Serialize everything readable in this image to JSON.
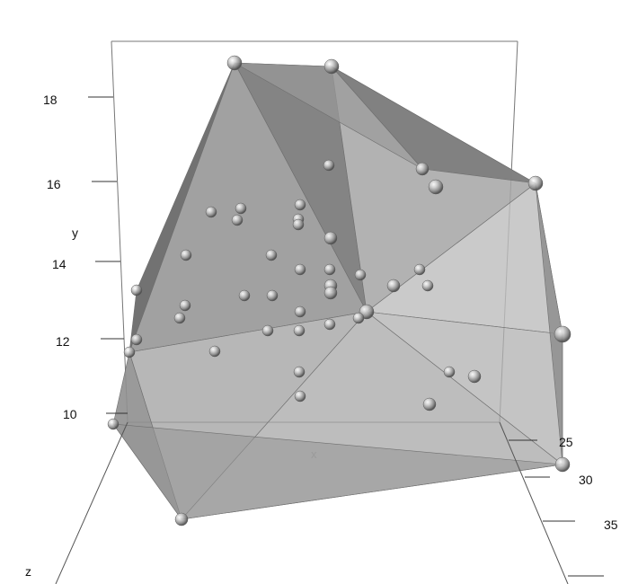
{
  "chart_data": {
    "type": "scatter",
    "subtype": "3d-convex-hull",
    "axes": {
      "x": {
        "label": "x"
      },
      "y": {
        "label": "y",
        "ticks": [
          "10",
          "12",
          "14",
          "16",
          "18"
        ]
      },
      "z": {
        "label": "z",
        "ticks": [
          "25",
          "30",
          "35"
        ]
      }
    },
    "hull_color": "#8c8c8c",
    "point_color": "#9a9a9a",
    "background": "#ffffff",
    "bounding_box": true,
    "grid": false,
    "legend": "none"
  }
}
